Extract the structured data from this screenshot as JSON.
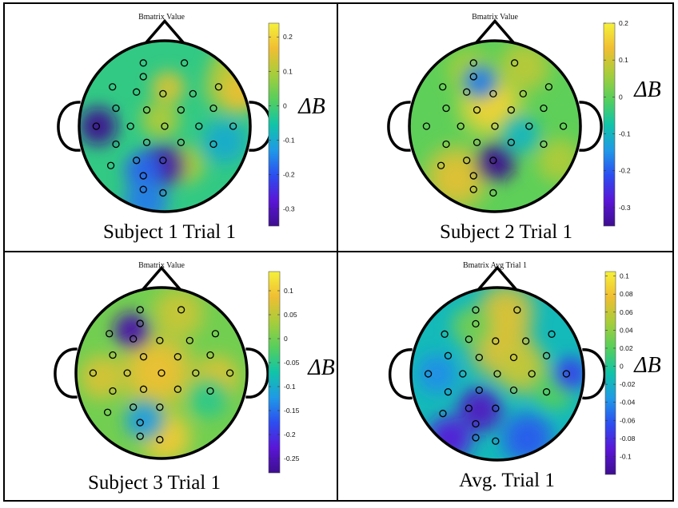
{
  "chart_data": [
    {
      "type": "heatmap",
      "panel_label": "Subject 1 Trial 1",
      "title": "Bmatrix Value",
      "colorbar": {
        "label": "ΔB",
        "ticks": [
          "0.2",
          "0.1",
          "0",
          "-0.1",
          "-0.2",
          "-0.3"
        ],
        "tick_values": [
          0.2,
          0.1,
          0,
          -0.1,
          -0.2,
          -0.3
        ],
        "range": [
          -0.35,
          0.24
        ]
      },
      "background_value": -0.02,
      "hot_spots": [
        {
          "x": 0.8,
          "y": 0.7,
          "value": 0.1,
          "spread": 0.16
        },
        {
          "x": 0.76,
          "y": 0.46,
          "value": 0.11,
          "spread": 0.18
        },
        {
          "x": 0.9,
          "y": 0.4,
          "value": 0.16,
          "spread": 0.14
        },
        {
          "x": 0.04,
          "y": 0.45,
          "value": 0.14,
          "spread": 0.12
        },
        {
          "x": -0.05,
          "y": 0.08,
          "value": 0.1,
          "spread": 0.14
        },
        {
          "x": 0.24,
          "y": -0.45,
          "value": 0.1,
          "spread": 0.14
        },
        {
          "x": -0.78,
          "y": 0.0,
          "value": -0.35,
          "spread": 0.14
        },
        {
          "x": -0.02,
          "y": -0.46,
          "value": -0.33,
          "spread": 0.15
        },
        {
          "x": -0.25,
          "y": -0.52,
          "value": -0.18,
          "spread": 0.14
        },
        {
          "x": -0.22,
          "y": -0.88,
          "value": -0.16,
          "spread": 0.16
        },
        {
          "x": 0.7,
          "y": -0.18,
          "value": -0.1,
          "spread": 0.16
        }
      ],
      "electrodes": [
        [
          -0.25,
          0.74
        ],
        [
          0.23,
          0.74
        ],
        [
          -0.25,
          0.58
        ],
        [
          -0.61,
          0.46
        ],
        [
          -0.33,
          0.4
        ],
        [
          -0.02,
          0.38
        ],
        [
          0.33,
          0.38
        ],
        [
          0.63,
          0.46
        ],
        [
          -0.57,
          0.21
        ],
        [
          -0.21,
          0.19
        ],
        [
          0.19,
          0.19
        ],
        [
          0.57,
          0.21
        ],
        [
          -0.8,
          0.0
        ],
        [
          -0.4,
          0.0
        ],
        [
          0.0,
          0.0
        ],
        [
          0.4,
          0.0
        ],
        [
          0.8,
          0.0
        ],
        [
          -0.57,
          -0.21
        ],
        [
          -0.21,
          -0.19
        ],
        [
          0.19,
          -0.19
        ],
        [
          0.57,
          -0.21
        ],
        [
          -0.63,
          -0.46
        ],
        [
          -0.33,
          -0.4
        ],
        [
          -0.02,
          -0.4
        ],
        [
          -0.25,
          -0.58
        ],
        [
          -0.25,
          -0.74
        ],
        [
          -0.02,
          -0.78
        ]
      ]
    },
    {
      "type": "heatmap",
      "panel_label": "Subject 2 Trial 1",
      "title": "Bmatrix Value",
      "colorbar": {
        "label": "ΔB",
        "ticks": [
          "0.2",
          "0.1",
          "0",
          "-0.1",
          "-0.2",
          "-0.3"
        ],
        "tick_values": [
          0.2,
          0.1,
          0,
          -0.1,
          -0.2,
          -0.3
        ],
        "range": [
          -0.35,
          0.2
        ]
      },
      "background_value": 0.0,
      "hot_spots": [
        {
          "x": -0.05,
          "y": 0.25,
          "value": 0.16,
          "spread": 0.22
        },
        {
          "x": -0.45,
          "y": -0.6,
          "value": 0.12,
          "spread": 0.22
        },
        {
          "x": 0.35,
          "y": 0.7,
          "value": 0.08,
          "spread": 0.18
        },
        {
          "x": -0.3,
          "y": 0.65,
          "value": 0.06,
          "spread": 0.16
        },
        {
          "x": 0.75,
          "y": -0.4,
          "value": 0.07,
          "spread": 0.16
        },
        {
          "x": 0.02,
          "y": -0.42,
          "value": -0.35,
          "spread": 0.14
        },
        {
          "x": -0.17,
          "y": 0.52,
          "value": -0.17,
          "spread": 0.12
        },
        {
          "x": 0.3,
          "y": -0.1,
          "value": -0.1,
          "spread": 0.14
        }
      ],
      "electrodes": [
        [
          -0.25,
          0.74
        ],
        [
          0.23,
          0.74
        ],
        [
          -0.25,
          0.58
        ],
        [
          -0.61,
          0.46
        ],
        [
          -0.33,
          0.4
        ],
        [
          -0.02,
          0.38
        ],
        [
          0.33,
          0.38
        ],
        [
          0.63,
          0.46
        ],
        [
          -0.57,
          0.21
        ],
        [
          -0.21,
          0.19
        ],
        [
          0.19,
          0.19
        ],
        [
          0.57,
          0.21
        ],
        [
          -0.8,
          0.0
        ],
        [
          -0.4,
          0.0
        ],
        [
          0.0,
          0.0
        ],
        [
          0.4,
          0.0
        ],
        [
          0.8,
          0.0
        ],
        [
          -0.57,
          -0.21
        ],
        [
          -0.21,
          -0.19
        ],
        [
          0.19,
          -0.19
        ],
        [
          0.57,
          -0.21
        ],
        [
          -0.63,
          -0.46
        ],
        [
          -0.33,
          -0.4
        ],
        [
          -0.02,
          -0.4
        ],
        [
          -0.25,
          -0.58
        ],
        [
          -0.25,
          -0.74
        ],
        [
          -0.02,
          -0.78
        ]
      ]
    },
    {
      "type": "heatmap",
      "panel_label": "Subject 3 Trial 1",
      "title": "Bmatrix Value",
      "colorbar": {
        "label": "ΔB",
        "ticks": [
          "0.1",
          "0.05",
          "0",
          "-0.05",
          "-0.1",
          "-0.15",
          "-0.2",
          "-0.25"
        ],
        "tick_values": [
          0.1,
          0.05,
          0,
          -0.05,
          -0.1,
          -0.15,
          -0.2,
          -0.25
        ],
        "range": [
          -0.28,
          0.14
        ]
      },
      "background_value": 0.0,
      "hot_spots": [
        {
          "x": -0.05,
          "y": 0.02,
          "value": 0.09,
          "spread": 0.26
        },
        {
          "x": 0.05,
          "y": -0.75,
          "value": 0.1,
          "spread": 0.18
        },
        {
          "x": -0.7,
          "y": -0.05,
          "value": 0.07,
          "spread": 0.16
        },
        {
          "x": 0.65,
          "y": -0.05,
          "value": 0.07,
          "spread": 0.16
        },
        {
          "x": 0.2,
          "y": 0.7,
          "value": 0.06,
          "spread": 0.18
        },
        {
          "x": -0.35,
          "y": 0.5,
          "value": -0.26,
          "spread": 0.13
        },
        {
          "x": -0.2,
          "y": -0.55,
          "value": -0.12,
          "spread": 0.14
        },
        {
          "x": 0.55,
          "y": -0.3,
          "value": -0.05,
          "spread": 0.14
        }
      ],
      "electrodes": [
        [
          -0.25,
          0.74
        ],
        [
          0.23,
          0.74
        ],
        [
          -0.25,
          0.58
        ],
        [
          -0.61,
          0.46
        ],
        [
          -0.33,
          0.4
        ],
        [
          -0.02,
          0.38
        ],
        [
          0.33,
          0.38
        ],
        [
          0.63,
          0.46
        ],
        [
          -0.57,
          0.21
        ],
        [
          -0.21,
          0.19
        ],
        [
          0.19,
          0.19
        ],
        [
          0.57,
          0.21
        ],
        [
          -0.8,
          0.0
        ],
        [
          -0.4,
          0.0
        ],
        [
          0.0,
          0.0
        ],
        [
          0.4,
          0.0
        ],
        [
          0.8,
          0.0
        ],
        [
          -0.57,
          -0.21
        ],
        [
          -0.21,
          -0.19
        ],
        [
          0.19,
          -0.19
        ],
        [
          0.57,
          -0.21
        ],
        [
          -0.63,
          -0.46
        ],
        [
          -0.33,
          -0.4
        ],
        [
          -0.02,
          -0.4
        ],
        [
          -0.25,
          -0.58
        ],
        [
          -0.25,
          -0.74
        ],
        [
          -0.02,
          -0.78
        ]
      ]
    },
    {
      "type": "heatmap",
      "panel_label": "Avg. Trial 1",
      "title": "Bmatrix Avg Trial 1",
      "colorbar": {
        "label": "ΔB",
        "ticks": [
          "0.1",
          "0.08",
          "0.06",
          "0.04",
          "0.02",
          "0",
          "-0.02",
          "-0.04",
          "-0.06",
          "-0.08",
          "-0.1"
        ],
        "tick_values": [
          0.1,
          0.08,
          0.06,
          0.04,
          0.02,
          0,
          -0.02,
          -0.04,
          -0.06,
          -0.08,
          -0.1
        ],
        "range": [
          -0.12,
          0.105
        ]
      },
      "background_value": -0.015,
      "hot_spots": [
        {
          "x": 0.05,
          "y": 0.3,
          "value": 0.07,
          "spread": 0.22
        },
        {
          "x": 0.1,
          "y": 0.72,
          "value": 0.07,
          "spread": 0.2
        },
        {
          "x": 0.3,
          "y": 0.05,
          "value": 0.06,
          "spread": 0.18
        },
        {
          "x": -0.3,
          "y": 0.55,
          "value": 0.03,
          "spread": 0.14
        },
        {
          "x": 0.65,
          "y": -0.2,
          "value": 0.02,
          "spread": 0.14
        },
        {
          "x": -0.2,
          "y": -0.42,
          "value": -0.1,
          "spread": 0.16
        },
        {
          "x": -0.55,
          "y": -0.75,
          "value": -0.09,
          "spread": 0.16
        },
        {
          "x": 0.85,
          "y": 0.0,
          "value": -0.07,
          "spread": 0.12
        },
        {
          "x": 0.35,
          "y": -0.75,
          "value": -0.06,
          "spread": 0.18
        },
        {
          "x": -0.7,
          "y": 0.0,
          "value": -0.04,
          "spread": 0.14
        }
      ],
      "electrodes": [
        [
          -0.25,
          0.74
        ],
        [
          0.23,
          0.74
        ],
        [
          -0.25,
          0.58
        ],
        [
          -0.61,
          0.46
        ],
        [
          -0.33,
          0.4
        ],
        [
          -0.02,
          0.38
        ],
        [
          0.33,
          0.38
        ],
        [
          0.63,
          0.46
        ],
        [
          -0.57,
          0.21
        ],
        [
          -0.21,
          0.19
        ],
        [
          0.19,
          0.19
        ],
        [
          0.57,
          0.21
        ],
        [
          -0.8,
          0.0
        ],
        [
          -0.4,
          0.0
        ],
        [
          0.0,
          0.0
        ],
        [
          0.4,
          0.0
        ],
        [
          0.8,
          0.0
        ],
        [
          -0.57,
          -0.21
        ],
        [
          -0.21,
          -0.19
        ],
        [
          0.19,
          -0.19
        ],
        [
          0.57,
          -0.21
        ],
        [
          -0.63,
          -0.46
        ],
        [
          -0.33,
          -0.4
        ],
        [
          -0.02,
          -0.4
        ],
        [
          -0.25,
          -0.58
        ],
        [
          -0.25,
          -0.74
        ],
        [
          -0.02,
          -0.78
        ]
      ]
    }
  ],
  "colormap": [
    "#3d0e8f",
    "#5a16d6",
    "#2c4ef0",
    "#1f9ae6",
    "#10c4a8",
    "#57cf5c",
    "#a8cd3a",
    "#f0be32",
    "#f5f13a"
  ]
}
